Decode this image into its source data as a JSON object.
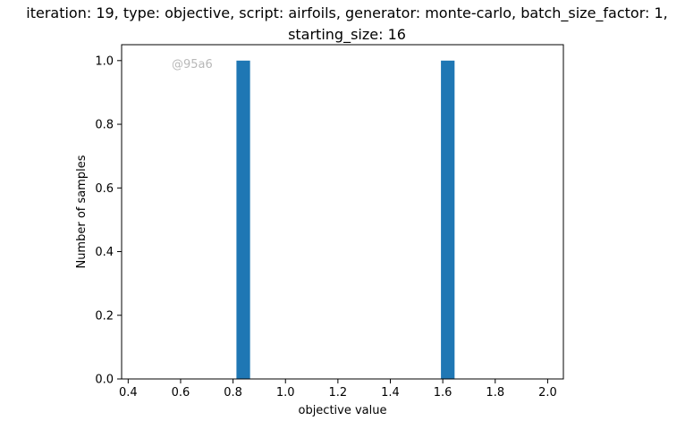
{
  "chart_data": {
    "type": "bar",
    "title_line1": "iteration: 19, type: objective, script: airfoils, generator: monte-carlo, batch_size_factor: 1,",
    "title_line2": "starting_size: 16",
    "xlabel": "objective value",
    "ylabel": "Number of samples",
    "xlim": [
      0.375,
      2.06
    ],
    "ylim": [
      0,
      1.05
    ],
    "x_ticks": [
      0.4,
      0.6,
      0.8,
      1.0,
      1.2,
      1.4,
      1.6,
      1.8,
      2.0
    ],
    "x_tick_labels": [
      "0.4",
      "0.6",
      "0.8",
      "1.0",
      "1.2",
      "1.4",
      "1.6",
      "1.8",
      "2.0"
    ],
    "y_ticks": [
      0.0,
      0.2,
      0.4,
      0.6,
      0.8,
      1.0
    ],
    "y_tick_labels": [
      "0.0",
      "0.2",
      "0.4",
      "0.6",
      "0.8",
      "1.0"
    ],
    "bin_width": 0.052,
    "bars": [
      {
        "x_start": 0.813,
        "value": 1
      },
      {
        "x_start": 1.593,
        "value": 1
      }
    ],
    "bar_color": "#1f77b4",
    "grid": false,
    "watermark": "@95a6",
    "watermark_color": "#b8b8b8"
  }
}
